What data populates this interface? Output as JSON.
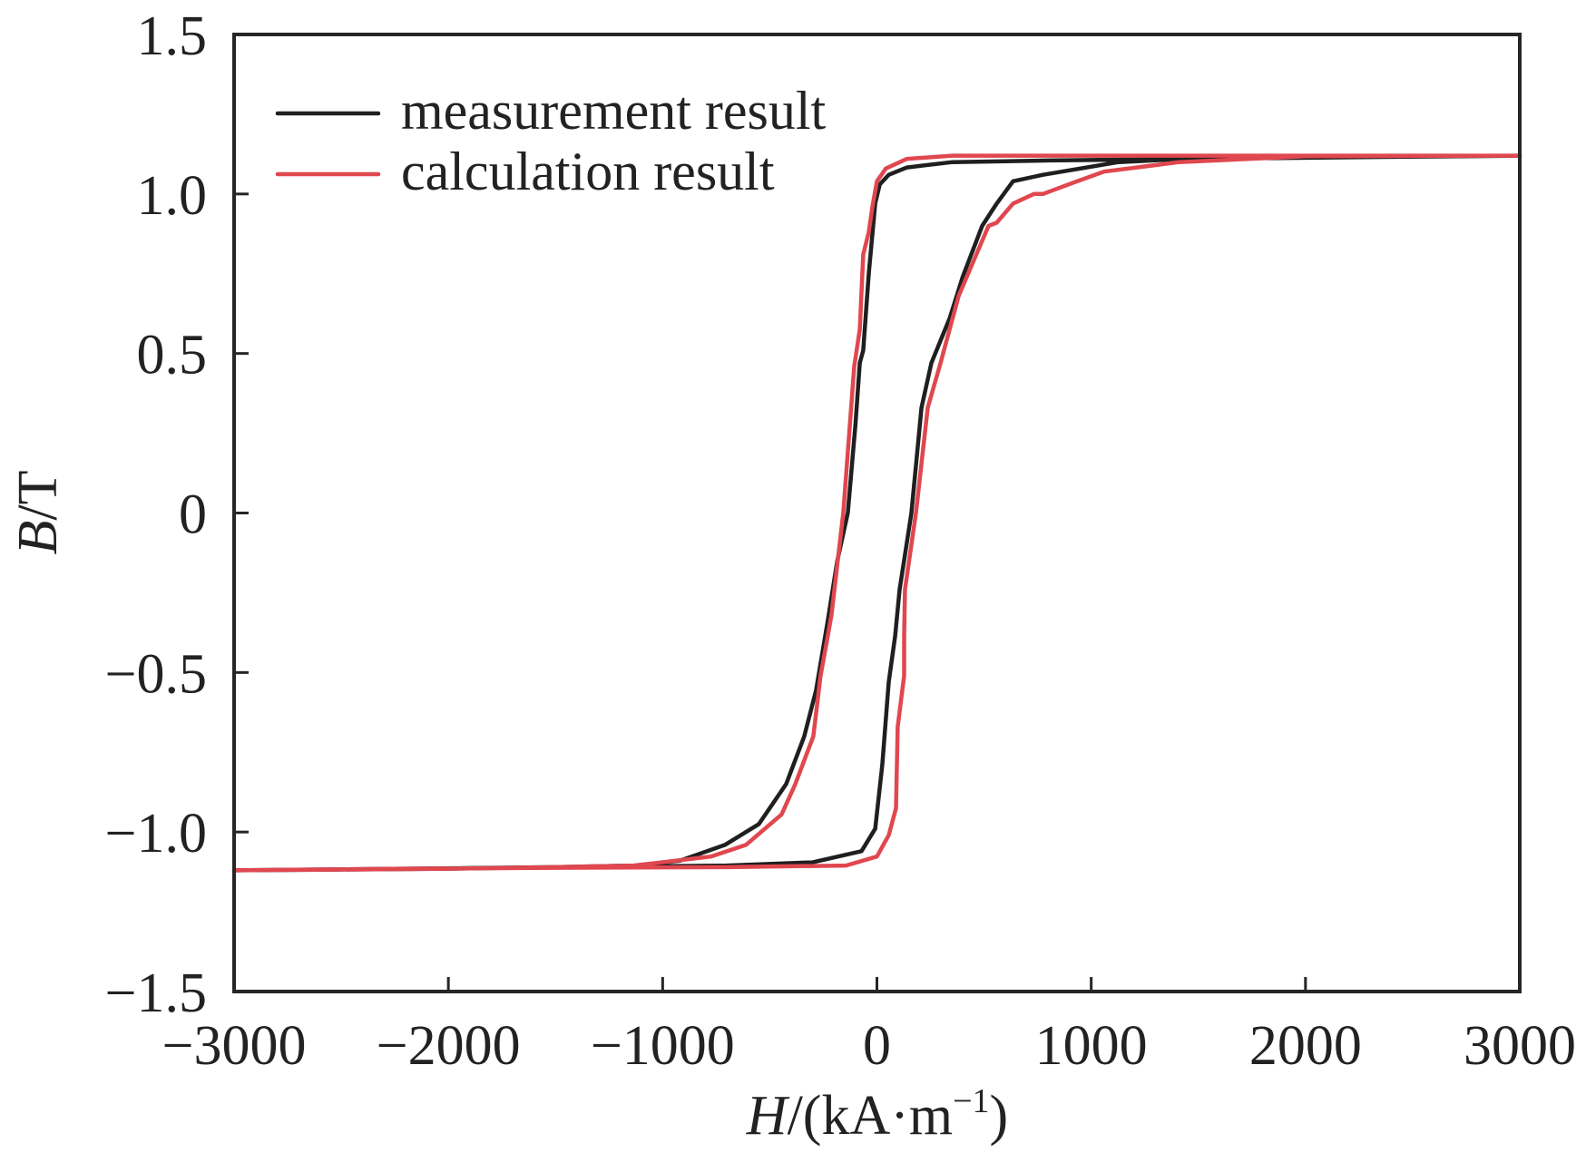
{
  "chart_data": {
    "type": "line",
    "title": "",
    "xlabel": "H/(kA·m⁻¹)",
    "xlabel_parts": {
      "var": "H",
      "unit_prefix": "/(kA·m",
      "sup": "−1",
      "unit_suffix": ")"
    },
    "ylabel": "B/T",
    "ylabel_parts": {
      "var": "B",
      "unit": "/T"
    },
    "xlim": [
      -3000,
      3000
    ],
    "ylim": [
      -1.5,
      1.5
    ],
    "xticks": [
      -3000,
      -2000,
      -1000,
      0,
      1000,
      2000,
      3000
    ],
    "xtick_labels": [
      "−3000",
      "−2000",
      "−1000",
      "0",
      "1000",
      "2000",
      "3000"
    ],
    "yticks": [
      1.5,
      1.0,
      0.5,
      0,
      -0.5,
      -1.0,
      -1.5
    ],
    "ytick_labels": [
      "1.5",
      "1.0",
      "0.5",
      "0",
      "−0.5",
      "−1.0",
      "−1.5"
    ],
    "grid": false,
    "legend_position": "top-left",
    "series": [
      {
        "name": "measurement result",
        "color": "#1f1f1f",
        "points": [
          [
            -3000,
            -1.12
          ],
          [
            -2000,
            -1.115
          ],
          [
            -1500,
            -1.11
          ],
          [
            -1131,
            -1.105
          ],
          [
            -919,
            -1.09
          ],
          [
            -708,
            -1.04
          ],
          [
            -551,
            -0.975
          ],
          [
            -424,
            -0.85
          ],
          [
            -339,
            -0.7
          ],
          [
            -284,
            -0.556
          ],
          [
            -229,
            -0.336
          ],
          [
            -185,
            -0.15
          ],
          [
            -136,
            0.0
          ],
          [
            -100,
            0.28
          ],
          [
            -80,
            0.47
          ],
          [
            -64,
            0.51
          ],
          [
            -38,
            0.75
          ],
          [
            -8,
            0.97
          ],
          [
            13,
            1.03
          ],
          [
            55,
            1.06
          ],
          [
            140,
            1.083
          ],
          [
            352,
            1.1
          ],
          [
            800,
            1.105
          ],
          [
            1500,
            1.11
          ],
          [
            2200,
            1.115
          ],
          [
            3000,
            1.12
          ],
          [
            2200,
            1.115
          ],
          [
            1500,
            1.112
          ],
          [
            1127,
            1.1
          ],
          [
            775,
            1.06
          ],
          [
            635,
            1.04
          ],
          [
            559,
            0.97
          ],
          [
            491,
            0.9
          ],
          [
            400,
            0.74
          ],
          [
            339,
            0.61
          ],
          [
            254,
            0.47
          ],
          [
            208,
            0.33
          ],
          [
            161,
            0.0
          ],
          [
            106,
            -0.24
          ],
          [
            85,
            -0.385
          ],
          [
            55,
            -0.53
          ],
          [
            25,
            -0.79
          ],
          [
            -8,
            -0.99
          ],
          [
            -72,
            -1.06
          ],
          [
            -300,
            -1.095
          ],
          [
            -700,
            -1.105
          ],
          [
            -1500,
            -1.11
          ],
          [
            -2200,
            -1.115
          ],
          [
            -3000,
            -1.12
          ]
        ]
      },
      {
        "name": "calculation result",
        "color": "#e0474f",
        "points": [
          [
            -3000,
            -1.12
          ],
          [
            -2000,
            -1.115
          ],
          [
            -1500,
            -1.11
          ],
          [
            -1131,
            -1.105
          ],
          [
            -775,
            -1.077
          ],
          [
            -610,
            -1.04
          ],
          [
            -445,
            -0.945
          ],
          [
            -381,
            -0.85
          ],
          [
            -297,
            -0.7
          ],
          [
            -263,
            -0.51
          ],
          [
            -229,
            -0.385
          ],
          [
            -212,
            -0.32
          ],
          [
            -157,
            0.0
          ],
          [
            -106,
            0.46
          ],
          [
            -80,
            0.575
          ],
          [
            -64,
            0.81
          ],
          [
            -38,
            0.88
          ],
          [
            -21,
            0.96
          ],
          [
            0,
            1.04
          ],
          [
            42,
            1.08
          ],
          [
            140,
            1.11
          ],
          [
            352,
            1.12
          ],
          [
            1000,
            1.12
          ],
          [
            2000,
            1.12
          ],
          [
            3000,
            1.12
          ],
          [
            2000,
            1.118
          ],
          [
            1411,
            1.1
          ],
          [
            1059,
            1.07
          ],
          [
            915,
            1.035
          ],
          [
            775,
            1.0
          ],
          [
            733,
            1.0
          ],
          [
            635,
            0.97
          ],
          [
            559,
            0.91
          ],
          [
            521,
            0.9
          ],
          [
            381,
            0.68
          ],
          [
            297,
            0.47
          ],
          [
            237,
            0.33
          ],
          [
            182,
            0.0
          ],
          [
            131,
            -0.24
          ],
          [
            127,
            -0.385
          ],
          [
            127,
            -0.51
          ],
          [
            97,
            -0.67
          ],
          [
            89,
            -0.926
          ],
          [
            55,
            -1.01
          ],
          [
            0,
            -1.077
          ],
          [
            -144,
            -1.105
          ],
          [
            -700,
            -1.11
          ],
          [
            -1500,
            -1.112
          ],
          [
            -2200,
            -1.115
          ],
          [
            -3000,
            -1.12
          ]
        ]
      }
    ]
  }
}
